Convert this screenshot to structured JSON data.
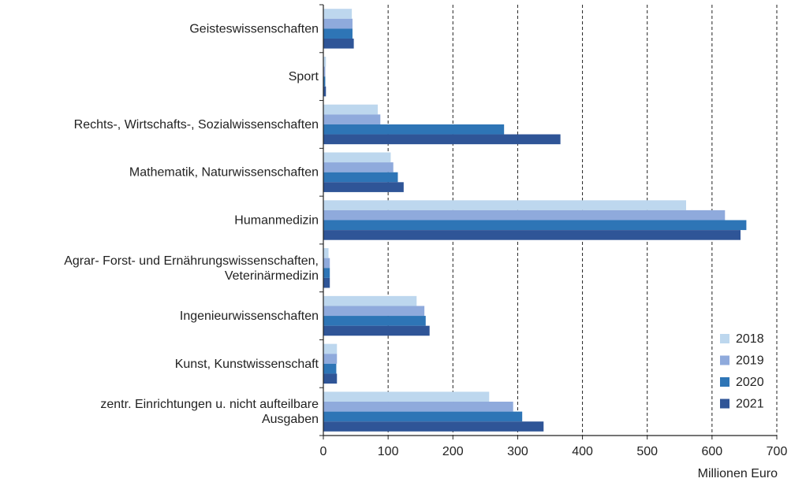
{
  "chart_data": {
    "type": "bar",
    "orientation": "horizontal",
    "xlabel": "Millionen Euro",
    "xlim": [
      0,
      700
    ],
    "xticks": [
      0,
      100,
      200,
      300,
      400,
      500,
      600,
      700
    ],
    "grid": "vertical dashed",
    "legend_position": "bottom-right",
    "categories": [
      [
        "Geisteswissenschaften"
      ],
      [
        "Sport"
      ],
      [
        "Rechts-, Wirtschafts-, Sozialwissenschaften"
      ],
      [
        "Mathematik, Naturwissenschaften"
      ],
      [
        "Humanmedizin"
      ],
      [
        "Agrar- Forst- und Ernährungswissenschaften,",
        "Veterinärmedizin"
      ],
      [
        "Ingenieurwissenschaften"
      ],
      [
        "Kunst, Kunstwissenschaft"
      ],
      [
        "zentr. Einrichtungen u. nicht aufteilbare",
        "Ausgaben"
      ]
    ],
    "series": [
      {
        "name": "2018",
        "color": "#bdd7ee",
        "values": [
          44,
          4,
          84,
          104,
          560,
          8,
          144,
          21,
          256
        ]
      },
      {
        "name": "2019",
        "color": "#8faadc",
        "values": [
          45,
          3,
          88,
          108,
          620,
          10,
          156,
          21,
          293
        ]
      },
      {
        "name": "2020",
        "color": "#2e75b6",
        "values": [
          45,
          3,
          279,
          115,
          653,
          10,
          158,
          20,
          307
        ]
      },
      {
        "name": "2021",
        "color": "#2f5597",
        "values": [
          47,
          4,
          366,
          124,
          644,
          10,
          164,
          21,
          340
        ]
      }
    ]
  }
}
